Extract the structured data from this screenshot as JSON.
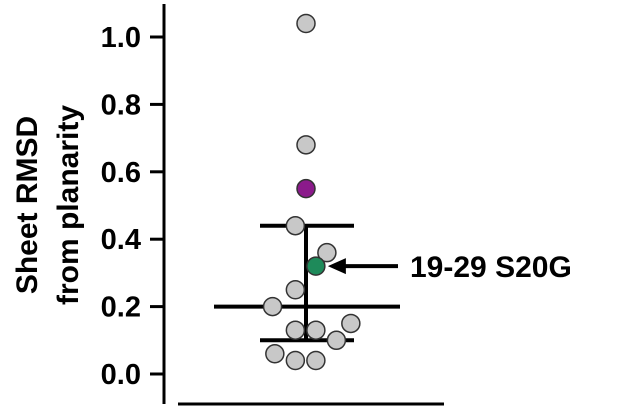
{
  "chart_data": {
    "type": "scatter",
    "title": "",
    "ylabel_lines": [
      "Sheet RMSD",
      "from planarity"
    ],
    "xlabel": "",
    "ylim": [
      0,
      1.05
    ],
    "yticks": [
      0.0,
      0.2,
      0.4,
      0.6,
      0.8,
      1.0
    ],
    "ytick_labels": [
      "0.0",
      "0.2",
      "0.4",
      "0.6",
      "0.8",
      "1.0"
    ],
    "grid": false,
    "summary": {
      "median": 0.2,
      "q1": 0.1,
      "q3": 0.44
    },
    "points": [
      {
        "y": 1.04,
        "jitter": 0.0,
        "color": "#c8c8c8"
      },
      {
        "y": 0.68,
        "jitter": 0.0,
        "color": "#c8c8c8"
      },
      {
        "y": 0.55,
        "jitter": 0.0,
        "color": "#8b1a8b"
      },
      {
        "y": 0.44,
        "jitter": -0.28,
        "color": "#c8c8c8"
      },
      {
        "y": 0.36,
        "jitter": 0.55,
        "color": "#c8c8c8"
      },
      {
        "y": 0.32,
        "jitter": 0.26,
        "color": "#1e8a5a"
      },
      {
        "y": 0.25,
        "jitter": -0.28,
        "color": "#c8c8c8"
      },
      {
        "y": 0.2,
        "jitter": -0.88,
        "color": "#c8c8c8"
      },
      {
        "y": 0.15,
        "jitter": 1.18,
        "color": "#c8c8c8"
      },
      {
        "y": 0.13,
        "jitter": -0.28,
        "color": "#c8c8c8"
      },
      {
        "y": 0.13,
        "jitter": 0.26,
        "color": "#c8c8c8"
      },
      {
        "y": 0.1,
        "jitter": 0.8,
        "color": "#c8c8c8"
      },
      {
        "y": 0.06,
        "jitter": -0.82,
        "color": "#c8c8c8"
      },
      {
        "y": 0.04,
        "jitter": -0.28,
        "color": "#c8c8c8"
      },
      {
        "y": 0.04,
        "jitter": 0.26,
        "color": "#c8c8c8"
      }
    ],
    "annotation": {
      "text": "19-29 S20G",
      "target_point_index": 5
    }
  }
}
